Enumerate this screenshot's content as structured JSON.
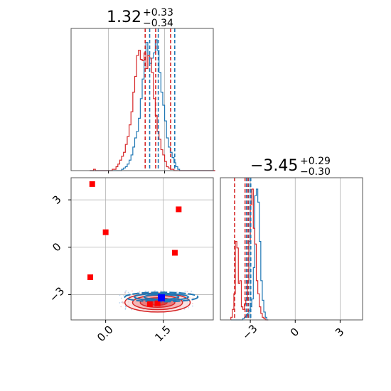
{
  "chart_data": [
    {
      "type": "histogram",
      "panel": "top-left",
      "title": {
        "value": "1.32",
        "plus": "+0.33",
        "minus": "−0.34"
      },
      "xlim": [
        -1.0,
        2.8
      ],
      "grid": true,
      "series": [
        {
          "color": "#1f77b4",
          "bin_start": -0.5,
          "bin_width": 0.05,
          "counts": [
            0,
            0,
            0,
            0,
            0,
            0,
            0,
            0,
            0,
            0,
            0,
            0,
            0,
            0,
            0,
            0,
            0,
            1,
            2,
            3,
            5,
            8,
            12,
            18,
            25,
            30,
            40,
            55,
            70,
            85,
            98,
            88,
            82,
            86,
            90,
            100,
            92,
            75,
            60,
            50,
            38,
            25,
            18,
            14,
            10,
            6,
            3,
            1,
            0,
            0,
            0,
            0,
            0,
            0,
            0,
            0,
            0,
            0,
            0,
            0,
            0,
            0,
            0,
            0,
            0,
            0,
            0
          ]
        },
        {
          "color": "#d62728",
          "bin_start": -0.5,
          "bin_width": 0.05,
          "counts": [
            0,
            0,
            1,
            0,
            0,
            0,
            0,
            0,
            0,
            0,
            0,
            0,
            1,
            1,
            3,
            5,
            8,
            11,
            14,
            20,
            26,
            35,
            45,
            60,
            72,
            88,
            92,
            85,
            84,
            90,
            78,
            88,
            86,
            75,
            55,
            42,
            30,
            24,
            16,
            12,
            7,
            3,
            2,
            1,
            1,
            0,
            0,
            0,
            0,
            0,
            0,
            0,
            0,
            0,
            0,
            0,
            0,
            0,
            0,
            0,
            0,
            0,
            0,
            0,
            0,
            0,
            0
          ]
        }
      ],
      "quantile_lines": [
        {
          "color": "#1f77b4",
          "values": [
            1.1,
            1.33,
            1.77
          ]
        },
        {
          "color": "#d62728",
          "values": [
            0.98,
            1.26,
            1.66
          ]
        }
      ]
    },
    {
      "type": "histogram",
      "panel": "bottom-right",
      "title": {
        "value": "−3.45",
        "plus": "+0.29",
        "minus": "−0.30"
      },
      "xlim": [
        -5.0,
        4.5
      ],
      "xticks": [
        -3,
        0,
        3
      ],
      "xtick_labels": [
        "−3",
        "0",
        "3"
      ],
      "grid": true,
      "series": [
        {
          "color": "#1f77b4",
          "bin_start": -4.3,
          "bin_width": 0.1,
          "counts": [
            0,
            0,
            0,
            0,
            0,
            0,
            0,
            0,
            1,
            2,
            3,
            5,
            7,
            10,
            16,
            40,
            95,
            100,
            90,
            60,
            30,
            15,
            6,
            2,
            0
          ]
        },
        {
          "color": "#d62728",
          "bin_start": -4.3,
          "bin_width": 0.1,
          "counts": [
            2,
            8,
            20,
            60,
            55,
            28,
            30,
            10,
            8,
            12,
            15,
            30,
            60,
            88,
            100,
            70,
            58,
            30,
            20,
            10,
            5,
            2,
            1,
            0,
            0
          ]
        }
      ],
      "quantile_lines": [
        {
          "color": "#1f77b4",
          "values": [
            -3.25,
            -3.1,
            -2.97
          ]
        },
        {
          "color": "#d62728",
          "values": [
            -4.05,
            -3.35,
            -3.15
          ]
        }
      ]
    },
    {
      "type": "scatter",
      "panel": "bottom-left",
      "xlim": [
        -0.9,
        2.8
      ],
      "ylim": [
        -4.6,
        4.4
      ],
      "xticks": [
        0.0,
        1.5
      ],
      "xtick_labels": [
        "0.0",
        "1.5"
      ],
      "yticks": [
        -3,
        0,
        3
      ],
      "ytick_labels": [
        "−3",
        "0",
        "3"
      ],
      "grid": true,
      "red_squares": [
        {
          "x": -0.35,
          "y": 4.0
        },
        {
          "x": 1.9,
          "y": 2.4
        },
        {
          "x": 0.0,
          "y": 0.95
        },
        {
          "x": 1.8,
          "y": -0.35
        },
        {
          "x": -0.4,
          "y": -1.9
        },
        {
          "x": 1.15,
          "y": -3.6
        },
        {
          "x": 1.35,
          "y": -3.55
        }
      ],
      "blue_squares": [
        {
          "x": 1.45,
          "y": -3.2
        }
      ],
      "contours_red": {
        "center": [
          1.35,
          -3.5
        ],
        "radii": [
          [
            0.85,
            0.6
          ],
          [
            0.65,
            0.45
          ],
          [
            0.45,
            0.3
          ],
          [
            0.25,
            0.17
          ]
        ]
      },
      "contours_blue": {
        "center": [
          1.45,
          -3.15
        ],
        "radii": [
          [
            0.95,
            0.3
          ],
          [
            0.7,
            0.22
          ],
          [
            0.45,
            0.15
          ]
        ]
      }
    }
  ]
}
